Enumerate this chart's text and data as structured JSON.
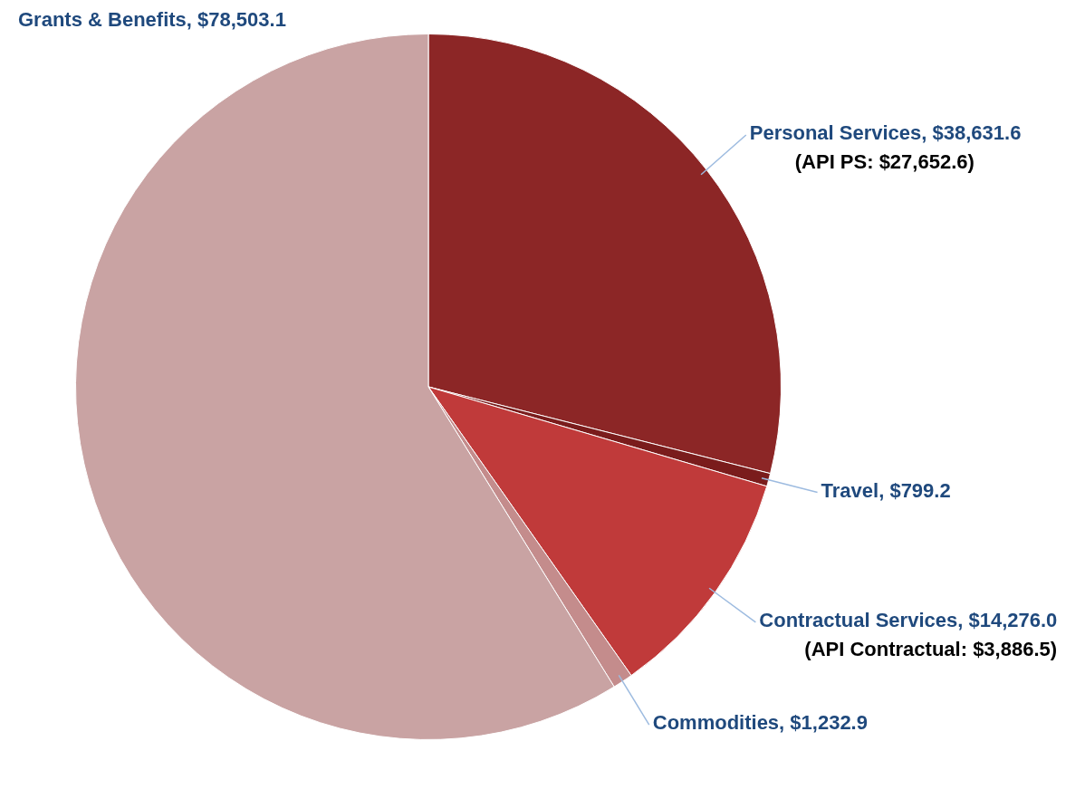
{
  "chart_data": {
    "type": "pie",
    "categories": [
      "Personal Services",
      "Travel",
      "Contractual Services",
      "Commodities",
      "Grants & Benefits"
    ],
    "values": [
      38631.6,
      799.2,
      14276.0,
      1232.9,
      78503.1
    ],
    "value_labels": [
      "$38,631.6",
      "$799.2",
      "$14,276.0",
      "$1,232.9",
      "$78,503.1"
    ],
    "colors": [
      "#8c2626",
      "#7a1c1c",
      "#c03a3a",
      "#c48c8c",
      "#c9a3a3"
    ],
    "annotations": [
      {
        "text": "(API PS: $27,652.6)",
        "x": "Personal Services"
      },
      {
        "text": "(API Contractual: $3,886.5)",
        "x": "Contractual Services"
      }
    ],
    "legend": false
  }
}
